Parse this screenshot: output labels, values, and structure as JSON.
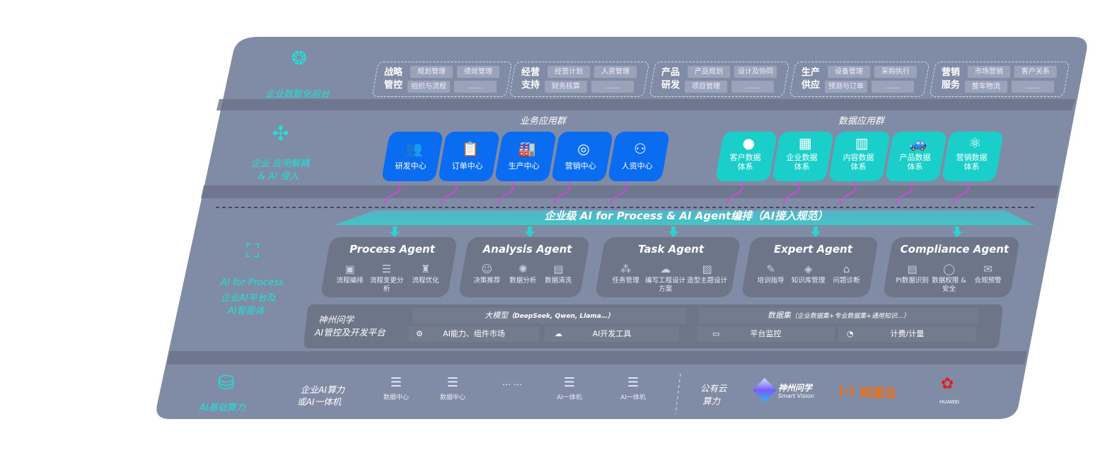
{
  "front": {
    "label": "企业数智化前台",
    "icon": "brain-icon",
    "groups": [
      {
        "title": "战略管控",
        "items": [
          "规划管理",
          "绩效管理",
          "组织与流程",
          "……"
        ]
      },
      {
        "title": "经营支持",
        "items": [
          "经营计划",
          "人资管理",
          "财务核算",
          "……"
        ]
      },
      {
        "title": "产品研发",
        "items": [
          "产品规划",
          "设计及协同",
          "项目管理",
          "……"
        ]
      },
      {
        "title": "生产供应",
        "items": [
          "设备管理",
          "采购执行",
          "预测与订单",
          "……"
        ]
      },
      {
        "title": "营销服务",
        "items": [
          "市场营销",
          "客户关系",
          "整车物流",
          "……"
        ]
      }
    ]
  },
  "apps": {
    "label_line1": "企业 应用解耦",
    "label_line2": "& AI 侵入",
    "icon": "molecule-icon",
    "business_title": "业务应用群",
    "business": [
      {
        "label": "研发中心",
        "icon": "users-icon"
      },
      {
        "label": "订单中心",
        "icon": "clipboard-icon"
      },
      {
        "label": "生产中心",
        "icon": "factory-icon"
      },
      {
        "label": "营销中心",
        "icon": "target-icon"
      },
      {
        "label": "人资中心",
        "icon": "person-icon"
      }
    ],
    "data_title": "数据应用群",
    "data": [
      {
        "label1": "客户数据",
        "label2": "体系",
        "icon": "user-icon"
      },
      {
        "label1": "企业数据",
        "label2": "体系",
        "icon": "building-icon"
      },
      {
        "label1": "内容数据",
        "label2": "体系",
        "icon": "books-icon"
      },
      {
        "label1": "产品数据",
        "label2": "体系",
        "icon": "car-icon"
      },
      {
        "label1": "营销数据",
        "label2": "体系",
        "icon": "atom-icon"
      }
    ]
  },
  "orchestration": {
    "label": "企业级 AI for Process & AI Agent编排（AI接入规范）"
  },
  "ai_platform": {
    "label_line1": "AI for Process",
    "label_line2": "企业AI平台及",
    "label_line3": "AI智能体",
    "icon": "face-scan-icon",
    "agents": [
      {
        "title": "Process Agent",
        "features": [
          "流程编排",
          "流程变更分析",
          "流程优化"
        ]
      },
      {
        "title": "Analysis Agent",
        "features": [
          "决策推荐",
          "数据分析",
          "数据清洗"
        ]
      },
      {
        "title": "Task Agent",
        "features": [
          "任务管理",
          "编写工程设计方案",
          "造型主题设计"
        ]
      },
      {
        "title": "Expert Agent",
        "features": [
          "培训指导",
          "知识库管理",
          "问题诊断"
        ]
      },
      {
        "title": "Compliance Agent",
        "features": [
          "PI数据识别",
          "数据权限 & 安全",
          "合规预警"
        ]
      }
    ],
    "platform": {
      "name_line1": "神州问学",
      "name_line2": "AI管控及开发平台",
      "llm_title": "大模型",
      "llm_note": "（DeepSeek, Qwen, Llama…）",
      "dataset_title": "数据集",
      "dataset_note": "（企业数据集+专业数据集+通用知识…）",
      "tools": [
        "AI能力、组件市场",
        "AI开发工具",
        "平台监控",
        "计费/计量"
      ]
    }
  },
  "compute": {
    "label": "AI基础算力",
    "icon": "database-icon",
    "private_line1": "企业AI算力",
    "private_line2": "或AI一体机",
    "servers": [
      "数据中心",
      "数据中心",
      "AI一体机",
      "AI一体机"
    ],
    "ellipsis": "… …",
    "public_line1": "公有云",
    "public_line2": "算力",
    "vendors": [
      {
        "name": "神州问学",
        "sub": "Smart Vision"
      },
      {
        "name": "阿里云",
        "color": "#ff6a00"
      },
      {
        "name": "HUAWEI",
        "color": "#e0201b"
      }
    ]
  },
  "colors": {
    "panel": "#808ca6",
    "blue_tile": "#0a6cf0",
    "teal_tile": "#1acfca",
    "accent_cyan": "#1fe0d6",
    "arrow_magenta": "#e040e8"
  }
}
